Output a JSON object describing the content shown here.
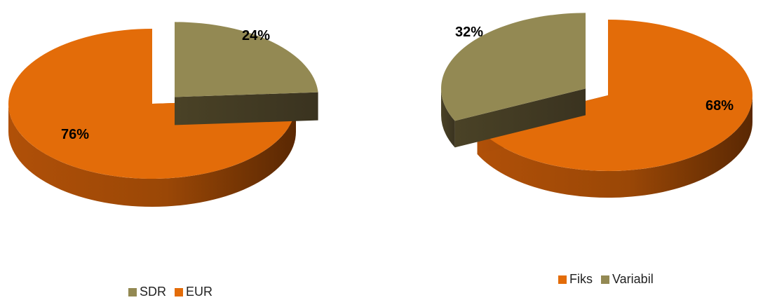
{
  "chart_data": [
    {
      "type": "pie",
      "slices": [
        {
          "label": "SDR",
          "value": 24,
          "display": "24%",
          "color": "#938953",
          "exploded": true
        },
        {
          "label": "EUR",
          "value": 76,
          "display": "76%",
          "color": "#E36C09",
          "exploded": false
        }
      ],
      "legend": {
        "placement": "bottom",
        "order": [
          "SDR",
          "EUR"
        ]
      }
    },
    {
      "type": "pie",
      "slices": [
        {
          "label": "Fiks",
          "value": 68,
          "display": "68%",
          "color": "#E36C09",
          "exploded": false
        },
        {
          "label": "Variabil",
          "value": 32,
          "display": "32%",
          "color": "#938953",
          "exploded": true
        }
      ],
      "legend": {
        "placement": "bottom",
        "order": [
          "Fiks",
          "Variabil"
        ]
      }
    }
  ]
}
